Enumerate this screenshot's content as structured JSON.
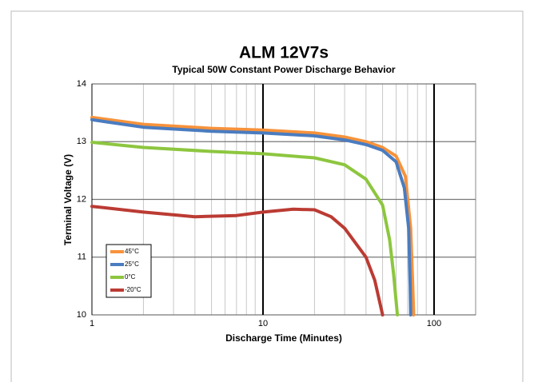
{
  "chart_data": {
    "type": "line",
    "title": "ALM 12V7s",
    "subtitle": "Typical 50W Constant Power Discharge Behavior",
    "x_label": "Discharge Time (Minutes)",
    "y_label": "Terminal Voltage (V)",
    "log_x": true,
    "xlim": [
      1,
      175
    ],
    "xticks": [
      1,
      10,
      100
    ],
    "x_minor_grid": [
      2,
      3,
      4,
      5,
      6,
      7,
      8,
      9,
      20,
      30,
      40,
      50,
      60,
      70,
      80,
      90
    ],
    "ylim": [
      10,
      14
    ],
    "yticks": [
      10,
      11,
      12,
      13,
      14
    ],
    "grid": true,
    "legend": "lower left",
    "series": [
      {
        "name": "45°C",
        "color": "#f7923a",
        "x": [
          1,
          2,
          5,
          10,
          20,
          30,
          40,
          50,
          60,
          68,
          73,
          75,
          76
        ],
        "values": [
          13.42,
          13.3,
          13.23,
          13.2,
          13.15,
          13.08,
          13.0,
          12.9,
          12.75,
          12.4,
          11.5,
          10.5,
          10.0
        ]
      },
      {
        "name": "25°C",
        "color": "#4a7cc0",
        "x": [
          1,
          2,
          5,
          10,
          20,
          30,
          40,
          50,
          60,
          67,
          71,
          72.5,
          73
        ],
        "values": [
          13.38,
          13.25,
          13.18,
          13.15,
          13.1,
          13.03,
          12.95,
          12.85,
          12.65,
          12.2,
          11.5,
          10.5,
          10.0
        ]
      },
      {
        "name": "0°C",
        "color": "#8dc63f",
        "x": [
          1,
          2,
          5,
          10,
          20,
          30,
          40,
          50,
          55,
          58,
          61
        ],
        "values": [
          12.99,
          12.9,
          12.83,
          12.79,
          12.72,
          12.6,
          12.35,
          11.9,
          11.3,
          10.7,
          10.0
        ]
      },
      {
        "name": "-20°C",
        "color": "#bb3b33",
        "x": [
          1,
          2,
          4,
          7,
          10,
          15,
          20,
          25,
          30,
          40,
          45,
          50
        ],
        "values": [
          11.88,
          11.78,
          11.7,
          11.72,
          11.78,
          11.83,
          11.82,
          11.7,
          11.5,
          11.0,
          10.6,
          10.0
        ]
      }
    ]
  }
}
